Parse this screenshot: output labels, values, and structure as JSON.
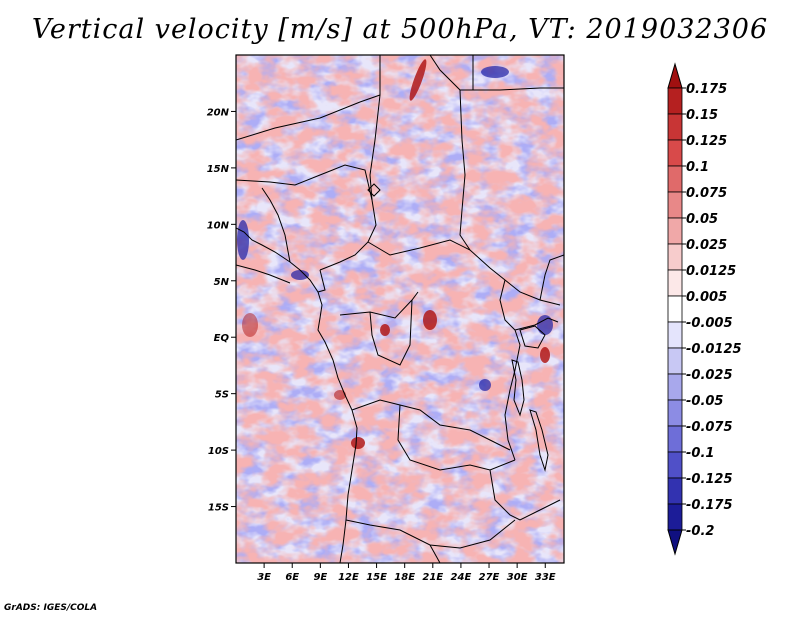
{
  "title": "Vertical velocity [m/s] at 500hPa, VT: 2019032306",
  "footer": "GrADS: IGES/COLA",
  "map": {
    "lat_labels": [
      "20N",
      "15N",
      "10N",
      "5N",
      "EQ",
      "5S",
      "10S",
      "15S"
    ],
    "lat_values": [
      20,
      15,
      10,
      5,
      0,
      -5,
      -10,
      -15
    ],
    "lon_labels": [
      "3E",
      "6E",
      "9E",
      "12E",
      "15E",
      "18E",
      "21E",
      "24E",
      "27E",
      "30E",
      "33E"
    ],
    "lon_values": [
      3,
      6,
      9,
      12,
      15,
      18,
      21,
      24,
      27,
      30,
      33
    ],
    "lon_range": [
      0,
      35
    ],
    "lat_range": [
      -20,
      25
    ]
  },
  "colorbar": {
    "labels": [
      "0.175",
      "0.15",
      "0.125",
      "0.1",
      "0.075",
      "0.05",
      "0.025",
      "0.0125",
      "0.005",
      "-0.005",
      "-0.0125",
      "-0.025",
      "-0.05",
      "-0.075",
      "-0.1",
      "-0.125",
      "-0.175",
      "-0.2"
    ],
    "colors": [
      "#a01010",
      "#b52020",
      "#c83535",
      "#d84a4a",
      "#e06a6a",
      "#e88888",
      "#f0a8a8",
      "#f7cccc",
      "#fce8e8",
      "#ffffff",
      "#e4e4fc",
      "#c8c8f4",
      "#a8a8ec",
      "#8c8ce4",
      "#6e6ed8",
      "#5050c8",
      "#3232b0",
      "#1c1c98",
      "#101080"
    ]
  }
}
